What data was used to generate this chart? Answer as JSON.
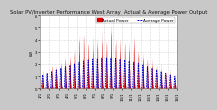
{
  "title": "Solar PV/Inverter Performance West Array  Actual & Average Power Output",
  "ylabel": "kW",
  "background_color": "#c8c8c8",
  "plot_bg_color": "#ffffff",
  "actual_color": "#dd0000",
  "average_color": "#0000cc",
  "grid_color": "#aaaaaa",
  "ylim": [
    0,
    6
  ],
  "ytick_labels": [
    "0",
    "1",
    "2",
    "3",
    "4",
    "5",
    "6"
  ],
  "num_days": 30,
  "pts_per_day": 48,
  "title_fontsize": 3.8,
  "legend_fontsize": 3.0,
  "tick_fontsize": 2.8
}
